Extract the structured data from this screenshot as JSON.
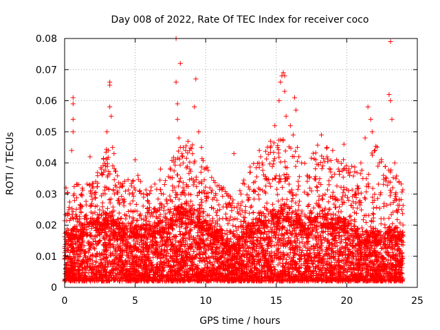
{
  "chart_data": {
    "type": "scatter",
    "title": "Day 008 of 2022, Rate Of TEC Index for receiver coco",
    "xlabel": "GPS time / hours",
    "ylabel": "ROTI / TECUs",
    "xlim": [
      0,
      25
    ],
    "ylim": [
      0,
      0.08
    ],
    "x_ticks": [
      0,
      5,
      10,
      15,
      20,
      25
    ],
    "x_tick_labels": [
      "0",
      "5",
      "10",
      "15",
      "20",
      "25"
    ],
    "y_ticks": [
      0,
      0.01,
      0.02,
      0.03,
      0.04,
      0.05,
      0.06,
      0.07,
      0.08
    ],
    "y_tick_labels": [
      "0",
      "0.01",
      "0.02",
      "0.03",
      "0.04",
      "0.05",
      "0.06",
      "0.07",
      "0.08"
    ],
    "grid": true,
    "grid_style": "dotted",
    "marker": "+",
    "marker_color": "#ff0000",
    "series": [
      {
        "points": [
          [
            0.1,
            0.032
          ],
          [
            0.3,
            0.025
          ],
          [
            0.5,
            0.044
          ],
          [
            0.6,
            0.061
          ],
          [
            0.6,
            0.059
          ],
          [
            0.6,
            0.054
          ],
          [
            0.6,
            0.05
          ],
          [
            0.9,
            0.033
          ],
          [
            1.2,
            0.03
          ],
          [
            1.8,
            0.042
          ],
          [
            2.2,
            0.034
          ],
          [
            2.6,
            0.038
          ],
          [
            3.0,
            0.05
          ],
          [
            3.2,
            0.066
          ],
          [
            3.2,
            0.065
          ],
          [
            3.2,
            0.058
          ],
          [
            3.3,
            0.055
          ],
          [
            3.4,
            0.045
          ],
          [
            3.5,
            0.043
          ],
          [
            3.8,
            0.022
          ],
          [
            4.2,
            0.02
          ],
          [
            4.8,
            0.03
          ],
          [
            5.0,
            0.041
          ],
          [
            5.2,
            0.036
          ],
          [
            5.6,
            0.03
          ],
          [
            6.0,
            0.024
          ],
          [
            6.5,
            0.02
          ],
          [
            6.8,
            0.038
          ],
          [
            7.0,
            0.03
          ],
          [
            7.5,
            0.028
          ],
          [
            7.9,
            0.08
          ],
          [
            7.9,
            0.066
          ],
          [
            8.0,
            0.059
          ],
          [
            8.0,
            0.054
          ],
          [
            8.1,
            0.048
          ],
          [
            8.2,
            0.072
          ],
          [
            8.2,
            0.045
          ],
          [
            8.4,
            0.04
          ],
          [
            8.8,
            0.03
          ],
          [
            9.0,
            0.035
          ],
          [
            9.2,
            0.058
          ],
          [
            9.3,
            0.067
          ],
          [
            9.5,
            0.05
          ],
          [
            9.7,
            0.045
          ],
          [
            9.9,
            0.038
          ],
          [
            10.3,
            0.032
          ],
          [
            10.8,
            0.028
          ],
          [
            11.0,
            0.025
          ],
          [
            11.5,
            0.022
          ],
          [
            12.0,
            0.043
          ],
          [
            12.5,
            0.03
          ],
          [
            13.0,
            0.028
          ],
          [
            13.5,
            0.034
          ],
          [
            13.8,
            0.044
          ],
          [
            14.0,
            0.04
          ],
          [
            14.3,
            0.035
          ],
          [
            14.6,
            0.047
          ],
          [
            14.9,
            0.052
          ],
          [
            15.1,
            0.045
          ],
          [
            15.2,
            0.06
          ],
          [
            15.3,
            0.066
          ],
          [
            15.4,
            0.068
          ],
          [
            15.5,
            0.069
          ],
          [
            15.6,
            0.068
          ],
          [
            15.6,
            0.063
          ],
          [
            15.7,
            0.055
          ],
          [
            16.0,
            0.052
          ],
          [
            16.2,
            0.049
          ],
          [
            16.3,
            0.061
          ],
          [
            16.4,
            0.057
          ],
          [
            16.5,
            0.045
          ],
          [
            16.8,
            0.04
          ],
          [
            17.2,
            0.036
          ],
          [
            17.5,
            0.031
          ],
          [
            17.8,
            0.041
          ],
          [
            18.2,
            0.049
          ],
          [
            18.6,
            0.045
          ],
          [
            19.0,
            0.044
          ],
          [
            19.4,
            0.038
          ],
          [
            19.8,
            0.046
          ],
          [
            20.2,
            0.036
          ],
          [
            20.6,
            0.03
          ],
          [
            21.0,
            0.04
          ],
          [
            21.3,
            0.048
          ],
          [
            21.5,
            0.058
          ],
          [
            21.7,
            0.054
          ],
          [
            21.8,
            0.05
          ],
          [
            22.0,
            0.044
          ],
          [
            22.3,
            0.04
          ],
          [
            22.6,
            0.036
          ],
          [
            23.0,
            0.062
          ],
          [
            23.1,
            0.079
          ],
          [
            23.1,
            0.06
          ],
          [
            23.2,
            0.054
          ],
          [
            23.4,
            0.04
          ],
          [
            23.7,
            0.034
          ],
          [
            23.9,
            0.025
          ]
        ],
        "background_spread": {
          "x_range": [
            0,
            24
          ],
          "hours": [
            0,
            1,
            2,
            3,
            4,
            5,
            6,
            7,
            8,
            9,
            10,
            11,
            12,
            13,
            14,
            15,
            16,
            17,
            18,
            19,
            20,
            21,
            22,
            23,
            24
          ],
          "dense_band_top": [
            0.018,
            0.02,
            0.022,
            0.024,
            0.02,
            0.02,
            0.02,
            0.022,
            0.026,
            0.026,
            0.022,
            0.018,
            0.014,
            0.02,
            0.024,
            0.028,
            0.026,
            0.022,
            0.024,
            0.024,
            0.022,
            0.018,
            0.018,
            0.02,
            0.018
          ],
          "sparse_top": [
            0.032,
            0.034,
            0.034,
            0.046,
            0.034,
            0.036,
            0.032,
            0.036,
            0.044,
            0.048,
            0.04,
            0.034,
            0.028,
            0.038,
            0.046,
            0.05,
            0.05,
            0.042,
            0.046,
            0.046,
            0.04,
            0.038,
            0.046,
            0.042,
            0.032
          ],
          "y_floor": 0.002
        }
      }
    ]
  }
}
